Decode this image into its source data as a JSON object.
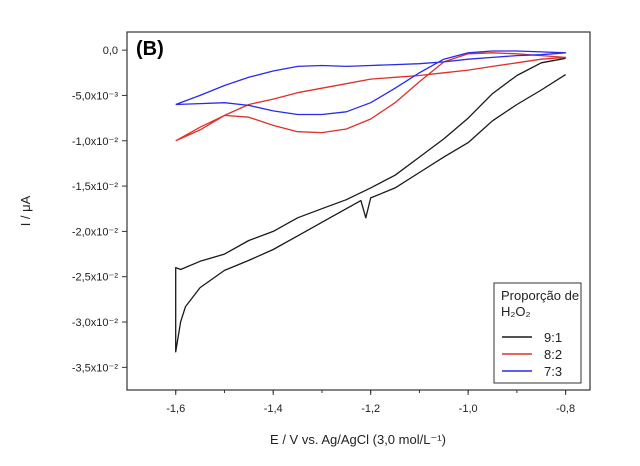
{
  "chart_data": {
    "type": "line",
    "panel_label": "(B)",
    "xlabel": "E / V vs. Ag/AgCl (3,0 mol/L⁻¹)",
    "ylabel": "I / μA",
    "xlim": [
      -1.7,
      -0.75
    ],
    "ylim": [
      -0.0375,
      0.002
    ],
    "x_ticks": [
      {
        "value": -1.6,
        "label": "-1,6"
      },
      {
        "value": -1.4,
        "label": "-1,4"
      },
      {
        "value": -1.2,
        "label": "-1,2"
      },
      {
        "value": -1.0,
        "label": "-1,0"
      },
      {
        "value": -0.8,
        "label": "-0,8"
      }
    ],
    "y_ticks": [
      {
        "value": 0.0,
        "label": "0,0"
      },
      {
        "value": -0.005,
        "label": "-5,0x10⁻³"
      },
      {
        "value": -0.01,
        "label": "-1,0x10⁻²"
      },
      {
        "value": -0.015,
        "label": "-1,5x10⁻²"
      },
      {
        "value": -0.02,
        "label": "-2,0x10⁻²"
      },
      {
        "value": -0.025,
        "label": "-2,5x10⁻²"
      },
      {
        "value": -0.03,
        "label": "-3,0x10⁻²"
      },
      {
        "value": -0.035,
        "label": "-3,5x10⁻²"
      }
    ],
    "legend": {
      "title_line1": "Proporção de",
      "title_line2": "H₂O₂",
      "placement": "bottom-right"
    },
    "colors": {
      "9:1": "#1a1a1a",
      "8:2": "#e0302a",
      "7:3": "#2a2aee"
    },
    "series": [
      {
        "name": "9:1",
        "color": "#1a1a1a",
        "x": [
          -0.8,
          -0.85,
          -0.9,
          -0.95,
          -1.0,
          -1.05,
          -1.1,
          -1.15,
          -1.2,
          -1.21,
          -1.22,
          -1.25,
          -1.3,
          -1.35,
          -1.4,
          -1.45,
          -1.5,
          -1.55,
          -1.58,
          -1.59,
          -1.6,
          -1.6,
          -1.59,
          -1.55,
          -1.5,
          -1.45,
          -1.4,
          -1.35,
          -1.3,
          -1.25,
          -1.2,
          -1.15,
          -1.1,
          -1.05,
          -1.0,
          -0.95,
          -0.9,
          -0.85,
          -0.8
        ],
        "y": [
          -0.0027,
          -0.0044,
          -0.006,
          -0.0078,
          -0.0102,
          -0.0118,
          -0.0135,
          -0.0152,
          -0.0163,
          -0.0185,
          -0.0166,
          -0.0175,
          -0.019,
          -0.0205,
          -0.022,
          -0.0232,
          -0.0243,
          -0.0262,
          -0.0283,
          -0.03,
          -0.0333,
          -0.024,
          -0.0242,
          -0.0233,
          -0.0225,
          -0.021,
          -0.02,
          -0.0185,
          -0.0175,
          -0.0165,
          -0.0152,
          -0.0138,
          -0.0118,
          -0.0098,
          -0.0075,
          -0.0048,
          -0.0028,
          -0.0014,
          -0.0009
        ]
      },
      {
        "name": "8:2",
        "color": "#e0302a",
        "x": [
          -1.6,
          -1.55,
          -1.5,
          -1.45,
          -1.4,
          -1.35,
          -1.3,
          -1.25,
          -1.2,
          -1.15,
          -1.1,
          -1.05,
          -1.0,
          -0.95,
          -0.9,
          -0.85,
          -0.8,
          -0.85,
          -0.9,
          -0.95,
          -1.0,
          -1.05,
          -1.1,
          -1.15,
          -1.2,
          -1.25,
          -1.3,
          -1.35,
          -1.4,
          -1.45,
          -1.5,
          -1.55,
          -1.6
        ],
        "y": [
          -0.01,
          -0.0088,
          -0.0072,
          -0.006,
          -0.0054,
          -0.0047,
          -0.0042,
          -0.0037,
          -0.0032,
          -0.003,
          -0.0028,
          -0.0025,
          -0.0022,
          -0.0018,
          -0.0014,
          -0.001,
          -0.0008,
          -0.0006,
          -0.0004,
          -0.0003,
          -0.0004,
          -0.0013,
          -0.0035,
          -0.0058,
          -0.0076,
          -0.0087,
          -0.0091,
          -0.009,
          -0.0083,
          -0.0074,
          -0.0072,
          -0.0085,
          -0.01
        ]
      },
      {
        "name": "7:3",
        "color": "#2a2aee",
        "x": [
          -1.6,
          -1.55,
          -1.5,
          -1.45,
          -1.4,
          -1.35,
          -1.3,
          -1.25,
          -1.2,
          -1.15,
          -1.1,
          -1.05,
          -1.0,
          -0.95,
          -0.9,
          -0.85,
          -0.8,
          -0.85,
          -0.9,
          -0.95,
          -1.0,
          -1.05,
          -1.1,
          -1.15,
          -1.2,
          -1.25,
          -1.3,
          -1.35,
          -1.4,
          -1.45,
          -1.5,
          -1.55,
          -1.6
        ],
        "y": [
          -0.006,
          -0.005,
          -0.0039,
          -0.003,
          -0.0023,
          -0.0018,
          -0.0017,
          -0.0018,
          -0.0017,
          -0.0016,
          -0.0015,
          -0.0013,
          -0.001,
          -0.0008,
          -0.0006,
          -0.0005,
          -0.0003,
          -0.0002,
          -0.0001,
          -0.0001,
          -0.0003,
          -0.001,
          -0.0025,
          -0.0042,
          -0.0058,
          -0.0068,
          -0.0071,
          -0.0071,
          -0.0067,
          -0.0061,
          -0.0058,
          -0.0059,
          -0.006
        ]
      }
    ]
  }
}
